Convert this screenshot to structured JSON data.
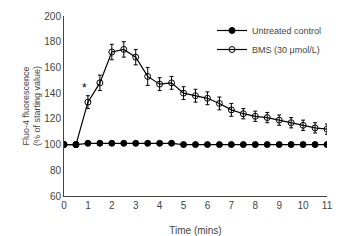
{
  "chart_data": {
    "type": "line",
    "xlabel": "Time (mins)",
    "ylabel": "Fluo-4 fluorescence\n(% of starting value)",
    "xlim": [
      0,
      11
    ],
    "ylim": [
      60,
      200
    ],
    "xticks": [
      0,
      1,
      2,
      3,
      4,
      5,
      6,
      7,
      8,
      9,
      10,
      11
    ],
    "yticks": [
      60,
      80,
      100,
      120,
      140,
      160,
      180,
      200
    ],
    "grid": false,
    "legend": "upper right",
    "x": [
      0.0,
      0.5,
      1.0,
      1.5,
      2.0,
      2.5,
      3.0,
      3.5,
      4.0,
      4.5,
      5.0,
      5.5,
      6.0,
      6.5,
      7.0,
      7.5,
      8.0,
      8.5,
      9.0,
      9.5,
      10.0,
      10.5,
      11.0
    ],
    "series": [
      {
        "name": "Untreated control",
        "color": "#000000",
        "marker": "circle",
        "values": [
          100,
          100,
          101,
          101,
          101,
          101,
          101,
          101,
          101,
          101,
          100,
          100,
          100,
          100,
          100,
          100,
          100,
          100,
          100,
          100,
          100,
          100,
          100
        ],
        "errors": [
          1,
          1,
          1,
          1,
          1,
          1,
          1,
          1,
          1,
          1,
          1,
          1,
          1,
          1,
          1,
          1,
          1,
          1,
          1,
          1,
          1,
          1,
          1
        ]
      },
      {
        "name": "BMS (30 μmol/L)",
        "color": "#000000",
        "marker": "circle-open",
        "values": [
          100,
          100,
          133,
          148,
          172,
          174,
          168,
          153,
          147,
          148,
          140,
          138,
          136,
          132,
          127,
          124,
          122,
          121,
          119,
          117,
          115,
          113,
          112
        ],
        "errors": [
          2,
          2,
          5,
          6,
          6,
          6,
          6,
          7,
          5,
          5,
          5,
          5,
          5,
          5,
          5,
          4,
          4,
          4,
          4,
          4,
          4,
          4,
          4
        ]
      }
    ],
    "annotations": [
      {
        "text": "*",
        "x": 0.85,
        "y": 137
      }
    ]
  }
}
